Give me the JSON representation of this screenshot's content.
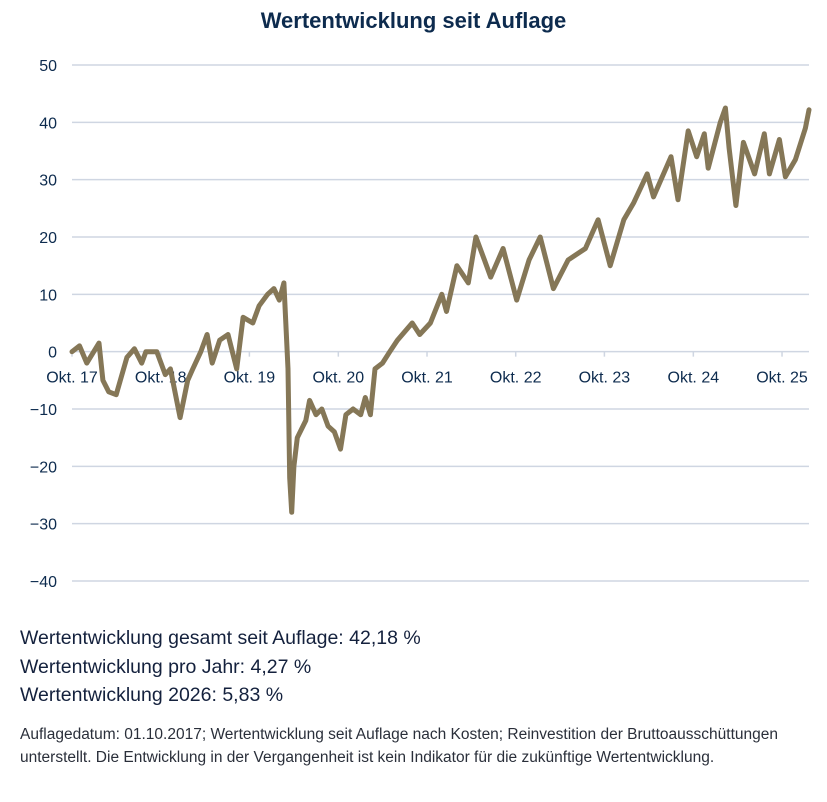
{
  "chart_data": {
    "type": "line",
    "title": "Wertentwicklung seit Auflage",
    "xlabel": "",
    "ylabel": "",
    "ylim": [
      -40,
      50
    ],
    "yticks": [
      50,
      40,
      30,
      20,
      10,
      0,
      -10,
      -20,
      -30,
      -40
    ],
    "xticks": [
      {
        "date": "2017-10-01",
        "label": "Okt. 17"
      },
      {
        "date": "2018-10-01",
        "label": "Okt. 18"
      },
      {
        "date": "2019-10-01",
        "label": "Okt. 19"
      },
      {
        "date": "2020-10-01",
        "label": "Okt. 20"
      },
      {
        "date": "2021-10-01",
        "label": "Okt. 21"
      },
      {
        "date": "2022-10-01",
        "label": "Okt. 22"
      },
      {
        "date": "2023-10-01",
        "label": "Okt. 23"
      },
      {
        "date": "2024-10-01",
        "label": "Okt. 24"
      },
      {
        "date": "2025-10-01",
        "label": "Okt. 25"
      }
    ],
    "xlim": [
      "2017-10-01",
      "2026-01-20"
    ],
    "grid": true,
    "line_color": "#857757",
    "grid_color": "#cfd6e2",
    "series": [
      {
        "points": [
          [
            "2017-10-01",
            0
          ],
          [
            "2017-11-01",
            1
          ],
          [
            "2017-12-01",
            -2
          ],
          [
            "2018-01-20",
            1.5
          ],
          [
            "2018-02-05",
            -5
          ],
          [
            "2018-03-01",
            -7
          ],
          [
            "2018-04-01",
            -7.5
          ],
          [
            "2018-05-15",
            -1
          ],
          [
            "2018-06-15",
            0.5
          ],
          [
            "2018-07-15",
            -2
          ],
          [
            "2018-08-01",
            0
          ],
          [
            "2018-09-15",
            0
          ],
          [
            "2018-10-20",
            -4
          ],
          [
            "2018-11-10",
            -3
          ],
          [
            "2018-12-20",
            -11.5
          ],
          [
            "2019-01-20",
            -5
          ],
          [
            "2019-02-10",
            -3
          ],
          [
            "2019-03-15",
            0
          ],
          [
            "2019-04-10",
            3
          ],
          [
            "2019-05-01",
            -2
          ],
          [
            "2019-06-01",
            2
          ],
          [
            "2019-07-05",
            3
          ],
          [
            "2019-08-10",
            -3
          ],
          [
            "2019-09-05",
            6
          ],
          [
            "2019-10-15",
            5
          ],
          [
            "2019-11-10",
            8
          ],
          [
            "2019-12-15",
            10
          ],
          [
            "2020-01-10",
            11
          ],
          [
            "2020-02-01",
            9
          ],
          [
            "2020-02-20",
            12
          ],
          [
            "2020-03-08",
            -3
          ],
          [
            "2020-03-15",
            -22
          ],
          [
            "2020-03-23",
            -28
          ],
          [
            "2020-04-01",
            -20
          ],
          [
            "2020-04-15",
            -15
          ],
          [
            "2020-05-20",
            -12
          ],
          [
            "2020-06-05",
            -8.5
          ],
          [
            "2020-07-01",
            -11
          ],
          [
            "2020-07-25",
            -10
          ],
          [
            "2020-08-20",
            -13
          ],
          [
            "2020-09-15",
            -14
          ],
          [
            "2020-10-10",
            -17
          ],
          [
            "2020-11-01",
            -11
          ],
          [
            "2020-12-01",
            -10
          ],
          [
            "2021-01-01",
            -11
          ],
          [
            "2021-01-20",
            -8
          ],
          [
            "2021-02-10",
            -11
          ],
          [
            "2021-03-01",
            -3
          ],
          [
            "2021-04-01",
            -2
          ],
          [
            "2021-05-01",
            0
          ],
          [
            "2021-06-01",
            2
          ],
          [
            "2021-08-01",
            5
          ],
          [
            "2021-09-01",
            3
          ],
          [
            "2021-10-15",
            5
          ],
          [
            "2021-12-01",
            10
          ],
          [
            "2021-12-20",
            7
          ],
          [
            "2022-02-01",
            15
          ],
          [
            "2022-03-20",
            12
          ],
          [
            "2022-04-20",
            20
          ],
          [
            "2022-05-25",
            16
          ],
          [
            "2022-06-20",
            13
          ],
          [
            "2022-08-10",
            18
          ],
          [
            "2022-10-05",
            9
          ],
          [
            "2022-11-25",
            16
          ],
          [
            "2023-01-10",
            20
          ],
          [
            "2023-03-05",
            11
          ],
          [
            "2023-05-05",
            16
          ],
          [
            "2023-07-15",
            18
          ],
          [
            "2023-09-05",
            23
          ],
          [
            "2023-10-25",
            15
          ],
          [
            "2023-12-20",
            23
          ],
          [
            "2024-01-30",
            26
          ],
          [
            "2024-03-25",
            31
          ],
          [
            "2024-04-20",
            27
          ],
          [
            "2024-07-01",
            34
          ],
          [
            "2024-07-30",
            26.5
          ],
          [
            "2024-09-10",
            38.5
          ],
          [
            "2024-10-15",
            34
          ],
          [
            "2024-11-15",
            38
          ],
          [
            "2024-12-01",
            32
          ],
          [
            "2025-01-20",
            40
          ],
          [
            "2025-02-10",
            42.5
          ],
          [
            "2025-02-25",
            35.5
          ],
          [
            "2025-03-25",
            25.5
          ],
          [
            "2025-04-25",
            36.5
          ],
          [
            "2025-06-10",
            31
          ],
          [
            "2025-07-20",
            38
          ],
          [
            "2025-08-10",
            31
          ],
          [
            "2025-09-20",
            37
          ],
          [
            "2025-10-15",
            30.5
          ],
          [
            "2025-11-25",
            33.5
          ],
          [
            "2026-01-05",
            39
          ],
          [
            "2026-01-20",
            42.18
          ]
        ]
      }
    ]
  },
  "stats": {
    "total": "Wertentwicklung gesamt seit Auflage: 42,18 %",
    "per_year": "Wertentwicklung pro Jahr: 4,27 %",
    "ytd": "Wertentwicklung 2026: 5,83 %"
  },
  "note": "Auflagedatum: 01.10.2017; Wertentwicklung seit Auflage nach Kosten; Reinvestition der Bruttoausschüttungen unterstellt. Die Entwicklung in der Vergangenheit ist kein Indikator für die zukünftige Wertentwicklung."
}
